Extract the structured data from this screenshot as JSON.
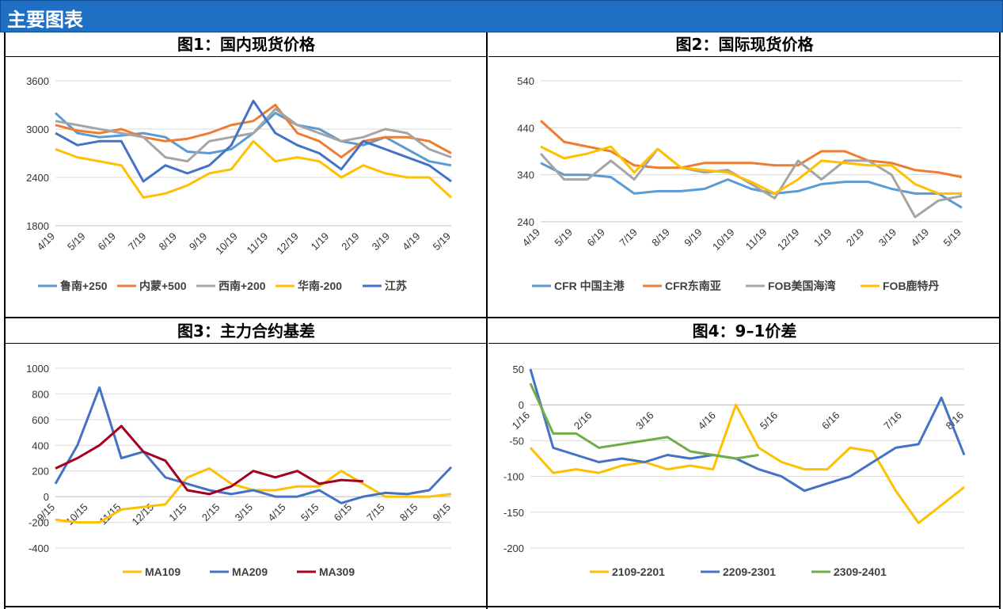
{
  "header": {
    "title": "主要图表"
  },
  "charts": [
    {
      "panel_title": "图1：国内现货价格",
      "chart_data": {
        "type": "line",
        "ylim": [
          1800,
          3600
        ],
        "yticks": [
          "3600",
          "3000",
          "2400",
          "1800"
        ],
        "ytick_values": [
          3600,
          3000,
          2400,
          1800
        ],
        "xticks": [
          "4/19",
          "5/19",
          "6/19",
          "7/19",
          "8/19",
          "9/19",
          "10/19",
          "11/19",
          "12/19",
          "1/19",
          "2/19",
          "3/19",
          "4/19",
          "5/19"
        ],
        "series": [
          {
            "name": "鲁南+250",
            "color": "#5B9BD5",
            "values": [
              3200,
              2950,
              2900,
              2920,
              2950,
              2900,
              2720,
              2700,
              2750,
              2950,
              3200,
              3050,
              3000,
              2850,
              2800,
              2900,
              2750,
              2600,
              2550
            ]
          },
          {
            "name": "内蒙+500",
            "color": "#ED7D31",
            "values": [
              3050,
              2980,
              2950,
              3000,
              2900,
              2850,
              2880,
              2950,
              3050,
              3100,
              3300,
              2950,
              2850,
              2650,
              2850,
              2900,
              2900,
              2850,
              2700
            ]
          },
          {
            "name": "西南+200",
            "color": "#A5A5A5",
            "values": [
              3100,
              3050,
              3000,
              2950,
              2900,
              2650,
              2600,
              2850,
              2900,
              2950,
              3250,
              3050,
              2950,
              2850,
              2900,
              3000,
              2950,
              2750,
              2650
            ]
          },
          {
            "name": "华南-200",
            "color": "#FFC000",
            "values": [
              2750,
              2650,
              2600,
              2550,
              2150,
              2200,
              2300,
              2450,
              2500,
              2850,
              2600,
              2650,
              2600,
              2400,
              2550,
              2450,
              2400,
              2400,
              2150
            ]
          },
          {
            "name": "江苏",
            "color": "#4472C4",
            "values": [
              2950,
              2800,
              2850,
              2850,
              2350,
              2550,
              2450,
              2550,
              2800,
              3350,
              2950,
              2800,
              2700,
              2500,
              2850,
              2750,
              2650,
              2550,
              2350
            ]
          }
        ]
      }
    },
    {
      "panel_title": "图2：国际现货价格",
      "chart_data": {
        "type": "line",
        "ylim": [
          240,
          540
        ],
        "yticks": [
          "540",
          "440",
          "340",
          "240"
        ],
        "ytick_values": [
          540,
          440,
          340,
          240
        ],
        "xticks": [
          "4/19",
          "5/19",
          "6/19",
          "7/19",
          "8/19",
          "9/19",
          "10/19",
          "11/19",
          "12/19",
          "1/19",
          "2/19",
          "3/19",
          "4/19",
          "5/19"
        ],
        "series": [
          {
            "name": "CFR 中国主港",
            "color": "#5B9BD5",
            "values": [
              365,
              340,
              340,
              335,
              300,
              305,
              305,
              310,
              330,
              310,
              300,
              305,
              320,
              325,
              325,
              310,
              300,
              300,
              270
            ]
          },
          {
            "name": "CFR东南亚",
            "color": "#ED7D31",
            "values": [
              455,
              410,
              400,
              390,
              360,
              355,
              355,
              365,
              365,
              365,
              360,
              360,
              390,
              390,
              370,
              365,
              350,
              345,
              335
            ]
          },
          {
            "name": "FOB美国海湾",
            "color": "#A5A5A5",
            "values": [
              385,
              330,
              330,
              370,
              330,
              395,
              355,
              345,
              350,
              320,
              290,
              370,
              330,
              370,
              370,
              340,
              250,
              285,
              295
            ]
          },
          {
            "name": "FOB鹿特丹",
            "color": "#FFC000",
            "values": [
              400,
              375,
              385,
              400,
              345,
              395,
              355,
              350,
              345,
              325,
              300,
              330,
              370,
              365,
              360,
              360,
              320,
              300,
              300
            ]
          }
        ]
      }
    },
    {
      "panel_title": "图3：主力合约基差",
      "chart_data": {
        "type": "line",
        "ylim": [
          -400,
          1000
        ],
        "yticks": [
          "1000",
          "800",
          "600",
          "400",
          "200",
          "0",
          "-200",
          "-400"
        ],
        "ytick_values": [
          1000,
          800,
          600,
          400,
          200,
          0,
          -200,
          -400
        ],
        "xticks": [
          "9/15",
          "10/15",
          "11/15",
          "12/15",
          "1/15",
          "2/15",
          "3/15",
          "4/15",
          "5/15",
          "6/15",
          "7/15",
          "8/15",
          "9/15"
        ],
        "series": [
          {
            "name": "MA109",
            "color": "#FFC000",
            "values": [
              -180,
              -200,
              -200,
              -100,
              -80,
              -60,
              150,
              220,
              100,
              50,
              50,
              80,
              80,
              200,
              100,
              0,
              0,
              0,
              20
            ]
          },
          {
            "name": "MA209",
            "color": "#4472C4",
            "values": [
              100,
              400,
              850,
              300,
              350,
              150,
              100,
              50,
              20,
              50,
              0,
              0,
              50,
              -50,
              0,
              30,
              20,
              50,
              230
            ]
          },
          {
            "name": "MA309",
            "color": "#A50021",
            "values": [
              220,
              300,
              400,
              550,
              350,
              280,
              50,
              20,
              80,
              200,
              150,
              200,
              100,
              130,
              120
            ]
          }
        ]
      }
    },
    {
      "panel_title": "图4：9–1价差",
      "chart_data": {
        "type": "line",
        "ylim": [
          -200,
          50
        ],
        "yticks": [
          "50",
          "0",
          "-50",
          "-100",
          "-150",
          "-200"
        ],
        "ytick_values": [
          50,
          0,
          -50,
          -100,
          -150,
          -200
        ],
        "xticks": [
          "1/16",
          "2/16",
          "3/16",
          "4/16",
          "5/16",
          "6/16",
          "7/16",
          "8/16"
        ],
        "series": [
          {
            "name": "2109-2201",
            "color": "#FFC000",
            "values": [
              -60,
              -95,
              -90,
              -95,
              -85,
              -80,
              -90,
              -85,
              -90,
              0,
              -60,
              -80,
              -90,
              -90,
              -60,
              -65,
              -120,
              -165,
              -140,
              -115
            ]
          },
          {
            "name": "2209-2301",
            "color": "#4472C4",
            "values": [
              50,
              -60,
              -70,
              -80,
              -75,
              -80,
              -70,
              -75,
              -70,
              -75,
              -90,
              -100,
              -120,
              -110,
              -100,
              -80,
              -60,
              -55,
              10,
              -70
            ]
          },
          {
            "name": "2309-2401",
            "color": "#70AD47",
            "values": [
              30,
              -40,
              -40,
              -60,
              -55,
              -50,
              -45,
              -65,
              -70,
              -75,
              -70
            ]
          }
        ]
      }
    }
  ]
}
